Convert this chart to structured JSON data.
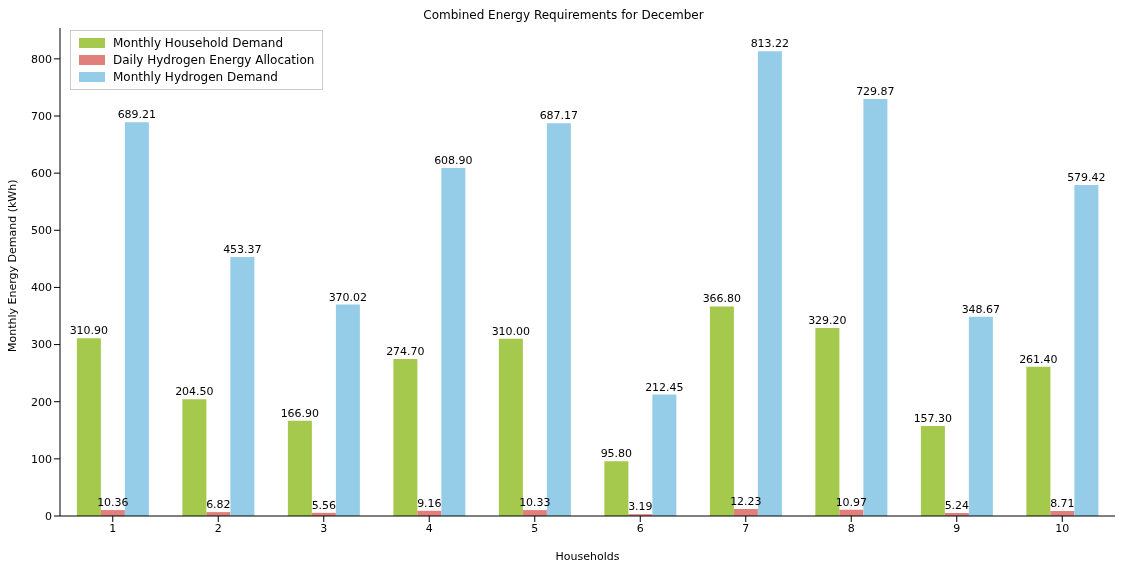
{
  "chart_data": {
    "type": "bar",
    "title": "Combined Energy Requirements for December",
    "xlabel": "Households",
    "ylabel": "Monthly Energy Demand (kWh)",
    "categories": [
      "1",
      "2",
      "3",
      "4",
      "5",
      "6",
      "7",
      "8",
      "9",
      "10"
    ],
    "series": [
      {
        "name": "Monthly Household Demand",
        "color": "#a4c94c",
        "values": [
          310.9,
          204.5,
          166.9,
          274.7,
          310.0,
          95.8,
          366.8,
          329.2,
          157.3,
          261.4
        ],
        "value_labels": [
          "310.90",
          "204.50",
          "166.90",
          "274.70",
          "310.00",
          "95.80",
          "366.80",
          "329.20",
          "157.30",
          "261.40"
        ]
      },
      {
        "name": "Daily Hydrogen Energy Allocation",
        "color": "#e07f7c",
        "values": [
          10.36,
          6.82,
          5.56,
          9.16,
          10.33,
          3.19,
          12.23,
          10.97,
          5.24,
          8.71
        ],
        "value_labels": [
          "10.36",
          "6.82",
          "5.56",
          "9.16",
          "10.33",
          "3.19",
          "12.23",
          "10.97",
          "5.24",
          "8.71"
        ]
      },
      {
        "name": "Monthly Hydrogen Demand",
        "color": "#95cde8",
        "values": [
          689.21,
          453.37,
          370.02,
          608.9,
          687.17,
          212.45,
          813.22,
          729.87,
          348.67,
          579.42
        ],
        "value_labels": [
          "689.21",
          "453.37",
          "370.02",
          "608.90",
          "687.17",
          "212.45",
          "813.22",
          "729.87",
          "348.67",
          "579.42"
        ]
      }
    ],
    "ylim": [
      0,
      854
    ],
    "yticks": [
      0,
      100,
      200,
      300,
      400,
      500,
      600,
      700,
      800
    ],
    "grid": false,
    "legend": "top left"
  }
}
